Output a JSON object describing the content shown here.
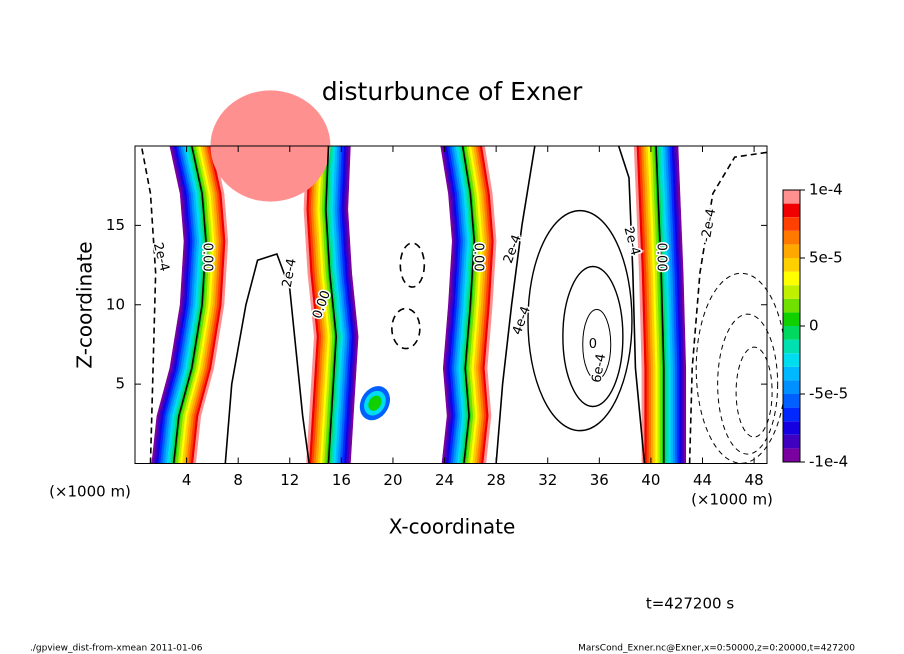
{
  "chart_data": {
    "type": "contour",
    "title": "disturbunce of Exner",
    "x_label": "X-coordinate",
    "y_label": "Z-coordinate",
    "x_unit": "(×1000 m)",
    "y_unit": "(×1000 m)",
    "xlim": [
      0,
      49
    ],
    "xticks": [
      4,
      8,
      12,
      16,
      20,
      24,
      28,
      32,
      36,
      40,
      44,
      48
    ],
    "ylim": [
      0,
      20
    ],
    "yticks": [
      5,
      10,
      15
    ],
    "clim": [
      -0.0001,
      0.0001
    ],
    "cticks": [
      {
        "value": 0.0001,
        "label": "1e-4"
      },
      {
        "value": 5e-05,
        "label": "5e-5"
      },
      0,
      {
        "value": -5e-05,
        "label": "-5e-5"
      },
      {
        "value": -0.0001,
        "label": "-1e-4"
      }
    ],
    "levels": [
      -0.0001,
      -9e-05,
      -8e-05,
      -7e-05,
      -6e-05,
      -5e-05,
      -4e-05,
      -3e-05,
      -2e-05,
      -1e-05,
      0,
      1e-05,
      2e-05,
      3e-05,
      4e-05,
      5e-05,
      6e-05,
      7e-05,
      8e-05,
      9e-05,
      0.0001
    ],
    "colors": [
      "#7a00a0",
      "#4000c0",
      "#1400e0",
      "#0028ff",
      "#0060ff",
      "#0090ff",
      "#00b8ff",
      "#00dcf0",
      "#00e0b0",
      "#00d860",
      "#10d000",
      "#70e000",
      "#c0f000",
      "#ffff00",
      "#ffd000",
      "#ffa800",
      "#ff7800",
      "#ff4000",
      "#f00000",
      "#ff9090"
    ],
    "contours": [
      {
        "value": 0,
        "label": "0.00"
      },
      {
        "value": 0.0002,
        "label": "2e-4"
      },
      {
        "value": 0.0004,
        "label": "4e-4"
      },
      {
        "value": 0.0006,
        "label": "6e-4"
      },
      {
        "value": -0.0002,
        "label": "-2e-4"
      },
      {
        "value": 0,
        "label": "0"
      }
    ],
    "time_label": "t=427200 s",
    "footer_left": "./gpview_dist-from-xmean  2011-01-06",
    "footer_right": "MarsCond_Exner.nc@Exner,x=0:50000,z=0:20000,t=427200"
  }
}
